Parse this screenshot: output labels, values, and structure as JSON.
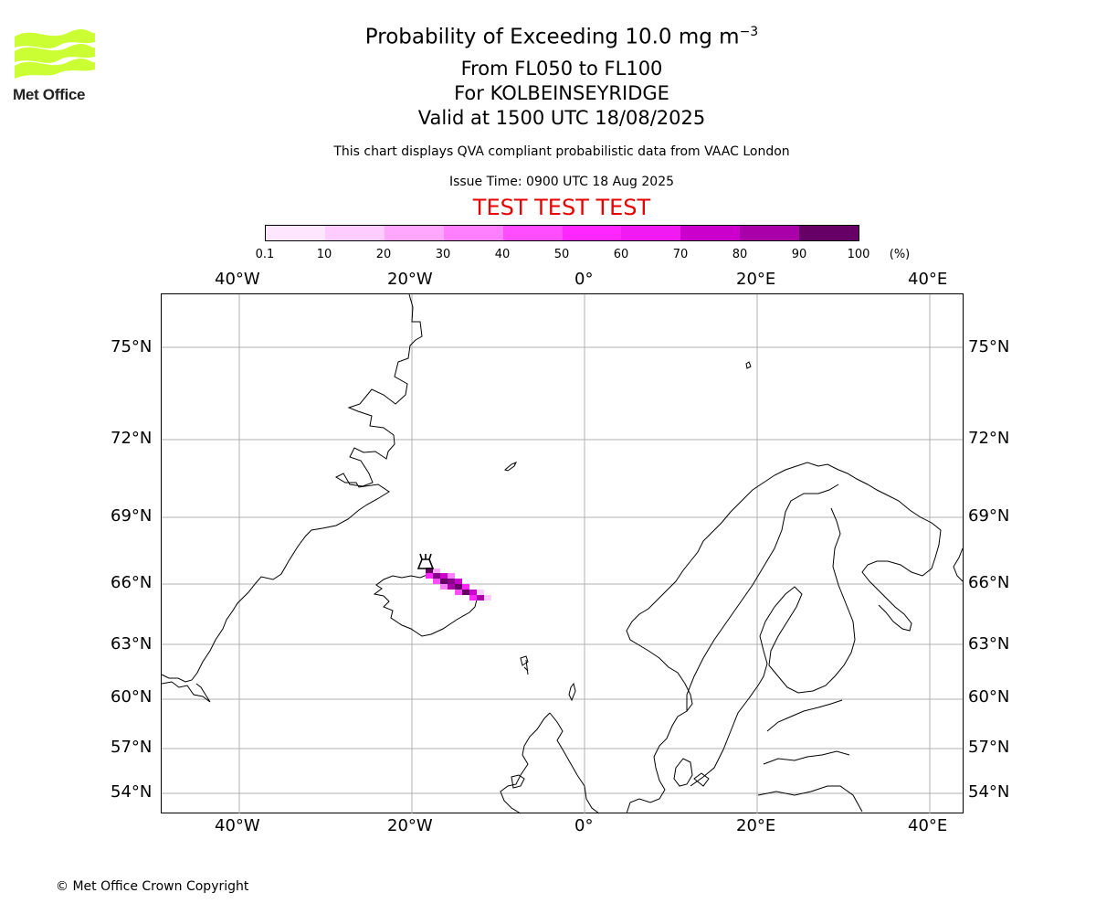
{
  "header": {
    "title_main": "Probability of Exceeding 10.0 mg m",
    "title_exp": "−3",
    "line2": "From FL050 to FL100",
    "line3": "For KOLBEINSEYRIDGE",
    "line4": "Valid at 1500 UTC 18/08/2025",
    "disclaimer": "This chart displays QVA compliant probabilistic data from VAAC London",
    "issue_time": "Issue Time: 0900 UTC 18 Aug 2025",
    "test_banner": "TEST TEST TEST"
  },
  "logo": {
    "text": "Met Office",
    "color": "#ccff33"
  },
  "colorbar": {
    "ticks": [
      "0.1",
      "10",
      "20",
      "30",
      "40",
      "50",
      "60",
      "70",
      "80",
      "90",
      "100"
    ],
    "unit": "(%)",
    "colors": [
      "#ffe6ff",
      "#ffccff",
      "#ffa6ff",
      "#ff80ff",
      "#ff4dff",
      "#ff26ff",
      "#f21af2",
      "#cc00cc",
      "#aa00aa",
      "#880088",
      "#660066"
    ]
  },
  "map": {
    "lon_labels": [
      "40°W",
      "20°W",
      "0°",
      "20°E",
      "40°E"
    ],
    "lat_labels": [
      "75°N",
      "72°N",
      "69°N",
      "66°N",
      "63°N",
      "60°N",
      "57°N",
      "54°N"
    ],
    "volcano_marker": "KOLBEINSEYRIDGE"
  },
  "footer": {
    "copyright": "© Met Office Crown Copyright"
  }
}
